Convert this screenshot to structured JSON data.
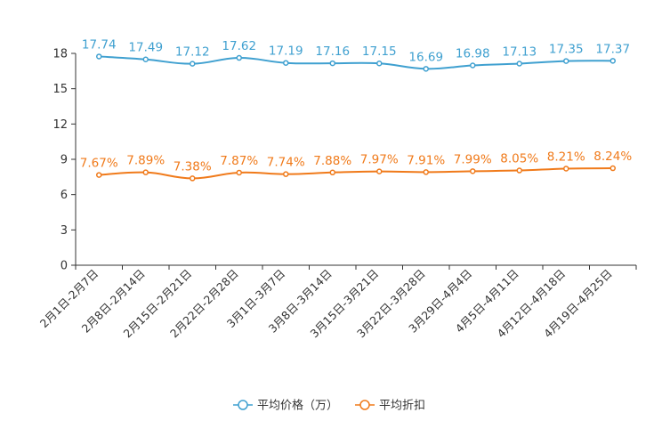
{
  "chart_data": {
    "type": "line",
    "title": "",
    "xlabel": "",
    "ylabel": "",
    "ylim": [
      0,
      18
    ],
    "yticks": [
      0,
      3,
      6,
      9,
      12,
      15,
      18
    ],
    "ytick_labels": [
      "0",
      "3",
      "6",
      "9",
      "12",
      "15",
      "18"
    ],
    "categories": [
      "2月1日-2月7日",
      "2月8日-2月14日",
      "2月15日-2月21日",
      "2月22日-2月28日",
      "3月1日-3月7日",
      "3月8日-3月14日",
      "3月15日-3月21日",
      "3月22日-3月28日",
      "3月29日-4月4日",
      "4月5日-4月11日",
      "4月12日-4月18日",
      "4月19日-4月25日"
    ],
    "series": [
      {
        "name": "平均价格（万）",
        "color": "#3fa0d0",
        "values": [
          17.74,
          17.49,
          17.12,
          17.62,
          17.19,
          17.16,
          17.15,
          16.69,
          16.98,
          17.13,
          17.35,
          17.37
        ],
        "labels": [
          "17.74",
          "17.49",
          "17.12",
          "17.62",
          "17.19",
          "17.16",
          "17.15",
          "16.69",
          "16.98",
          "17.13",
          "17.35",
          "17.37"
        ]
      },
      {
        "name": "平均折扣",
        "color": "#f07a1a",
        "values": [
          7.67,
          7.89,
          7.38,
          7.87,
          7.74,
          7.88,
          7.97,
          7.91,
          7.99,
          8.05,
          8.21,
          8.24
        ],
        "labels": [
          "7.67%",
          "7.89%",
          "7.38%",
          "7.87%",
          "7.74%",
          "7.88%",
          "7.97%",
          "7.91%",
          "7.99%",
          "8.05%",
          "8.21%",
          "8.24%"
        ]
      }
    ],
    "legend_position": "bottom-center",
    "grid": false
  }
}
